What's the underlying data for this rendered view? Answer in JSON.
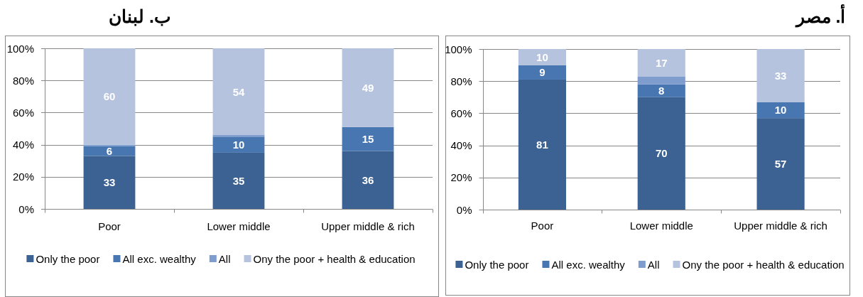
{
  "chart_data": [
    {
      "type": "bar",
      "stacked": true,
      "title": "ب. لبنان",
      "categories": [
        "Poor",
        "Lower middle",
        "Upper middle & rich"
      ],
      "series": [
        {
          "name": "Only the poor",
          "color": "#3b6292",
          "values": [
            33,
            35,
            36
          ],
          "value_labels": [
            "33",
            "35",
            "36"
          ]
        },
        {
          "name": "All exc. wealthy",
          "color": "#4876b0",
          "values": [
            6,
            10,
            15
          ],
          "value_labels": [
            "6",
            "10",
            "15"
          ]
        },
        {
          "name": "All",
          "color": "#7e9ccd",
          "values": [
            1,
            1,
            null
          ]
        },
        {
          "name": "Ony the poor + health & education",
          "color": "#b5c3de",
          "values": [
            60,
            54,
            49
          ],
          "value_labels": [
            "60",
            "54",
            "49"
          ]
        }
      ],
      "ylim": [
        0,
        100
      ],
      "yticks": [
        {
          "value": 0,
          "label": "0%"
        },
        {
          "value": 20,
          "label": "20%"
        },
        {
          "value": 40,
          "label": "40%"
        },
        {
          "value": 60,
          "label": "60%"
        },
        {
          "value": 80,
          "label": "80%"
        },
        {
          "value": 100,
          "label": "100%"
        }
      ],
      "grid": "y",
      "legend": "bottom"
    },
    {
      "type": "bar",
      "stacked": true,
      "title": "أ. مصر",
      "categories": [
        "Poor",
        "Lower middle",
        "Upper middle & rich"
      ],
      "series": [
        {
          "name": "Only the poor",
          "color": "#3b6292",
          "values": [
            81,
            70,
            57
          ],
          "value_labels": [
            "81",
            "70",
            "57"
          ]
        },
        {
          "name": "All exc. wealthy",
          "color": "#4876b0",
          "values": [
            9,
            8,
            10
          ],
          "value_labels": [
            "9",
            "8",
            "10"
          ]
        },
        {
          "name": "All",
          "color": "#7e9ccd",
          "values": [
            null,
            5,
            null
          ]
        },
        {
          "name": "Ony the poor + health & education",
          "color": "#b5c3de",
          "values": [
            10,
            17,
            33
          ],
          "value_labels": [
            "10",
            "17",
            "33"
          ]
        }
      ],
      "ylim": [
        0,
        100
      ],
      "yticks": [
        {
          "value": 0,
          "label": "0%"
        },
        {
          "value": 20,
          "label": "20%"
        },
        {
          "value": 40,
          "label": "40%"
        },
        {
          "value": 60,
          "label": "60%"
        },
        {
          "value": 80,
          "label": "80%"
        },
        {
          "value": 100,
          "label": "100%"
        }
      ],
      "grid": "y",
      "legend": "bottom"
    }
  ]
}
